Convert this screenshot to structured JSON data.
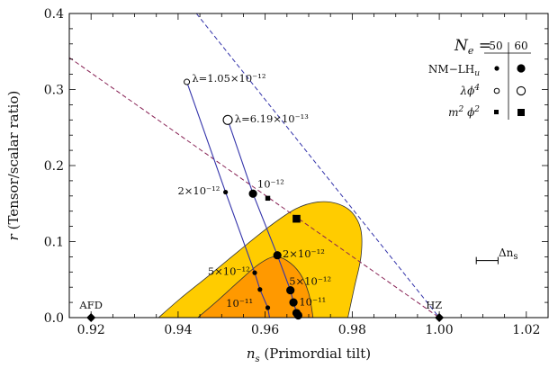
{
  "chart_data": {
    "type": "scatter",
    "x": {
      "label_symbol": "n",
      "label_subscript": "s",
      "label_rest": " (Primordial tilt)",
      "range": [
        0.915,
        1.025
      ],
      "ticks": [
        0.92,
        0.94,
        0.96,
        0.98,
        1.0,
        1.02
      ],
      "tick_labels": [
        "0.92",
        "0.94",
        "0.96",
        "0.98",
        "1.00",
        "1.02"
      ]
    },
    "y": {
      "label_symbol": "r",
      "label_rest": " (Tensor/scalar ratio)",
      "range": [
        0.0,
        0.4
      ],
      "ticks": [
        0.0,
        0.1,
        0.2,
        0.3,
        0.4
      ],
      "tick_labels": [
        "0.0",
        "0.1",
        "0.2",
        "0.3",
        "0.4"
      ]
    },
    "colors": {
      "outer_contour": "#FFCC00",
      "inner_contour": "#FF9900",
      "blue_lines": "#3333AA",
      "dashed_blue": "#3333AA",
      "dashed_purple": "#882255",
      "contour_edge": "#333333"
    },
    "confidence_regions": [
      {
        "name": "outer",
        "points": [
          [
            0.9355,
            0.0
          ],
          [
            0.9405,
            0.025
          ],
          [
            0.947,
            0.055
          ],
          [
            0.954,
            0.088
          ],
          [
            0.961,
            0.12
          ],
          [
            0.967,
            0.143
          ],
          [
            0.972,
            0.152
          ],
          [
            0.9765,
            0.15
          ],
          [
            0.98,
            0.138
          ],
          [
            0.982,
            0.115
          ],
          [
            0.982,
            0.08
          ],
          [
            0.9805,
            0.04
          ],
          [
            0.979,
            0.0
          ]
        ]
      },
      {
        "name": "inner",
        "points": [
          [
            0.9445,
            0.0
          ],
          [
            0.949,
            0.022
          ],
          [
            0.954,
            0.048
          ],
          [
            0.9585,
            0.07
          ],
          [
            0.962,
            0.08
          ],
          [
            0.965,
            0.075
          ],
          [
            0.968,
            0.058
          ],
          [
            0.97,
            0.032
          ],
          [
            0.971,
            0.0
          ]
        ]
      }
    ],
    "lambda_curves": [
      {
        "name": "large",
        "points": [
          [
            0.9514,
            0.26
          ],
          [
            0.9572,
            0.163
          ],
          [
            0.9628,
            0.082
          ],
          [
            0.9658,
            0.036
          ],
          [
            0.9665,
            0.02
          ],
          [
            0.9676,
            0.0
          ]
        ]
      },
      {
        "name": "small",
        "points": [
          [
            0.942,
            0.31
          ],
          [
            0.9509,
            0.165
          ],
          [
            0.9576,
            0.059
          ],
          [
            0.9588,
            0.037
          ],
          [
            0.9606,
            0.013
          ],
          [
            0.961,
            0.0
          ]
        ]
      }
    ],
    "dashed_lines": [
      {
        "name": "blue",
        "points": [
          [
            0.9442,
            0.4
          ],
          [
            1.0,
            0.0
          ]
        ]
      },
      {
        "name": "purple",
        "points": [
          [
            0.915,
            0.342
          ],
          [
            1.0,
            0.0
          ]
        ]
      }
    ],
    "markers": [
      {
        "x": 0.942,
        "y": 0.31,
        "kind": "open-small"
      },
      {
        "x": 0.9514,
        "y": 0.26,
        "kind": "open-large"
      },
      {
        "x": 0.9509,
        "y": 0.165,
        "kind": "dot-small"
      },
      {
        "x": 0.9572,
        "y": 0.163,
        "kind": "dot-large"
      },
      {
        "x": 0.9576,
        "y": 0.059,
        "kind": "dot-small"
      },
      {
        "x": 0.9588,
        "y": 0.037,
        "kind": "dot-small"
      },
      {
        "x": 0.9606,
        "y": 0.013,
        "kind": "dot-small"
      },
      {
        "x": 0.9628,
        "y": 0.082,
        "kind": "dot-large"
      },
      {
        "x": 0.9658,
        "y": 0.036,
        "kind": "dot-large"
      },
      {
        "x": 0.9665,
        "y": 0.02,
        "kind": "dot-large"
      },
      {
        "x": 0.9672,
        "y": 0.006,
        "kind": "dot-large"
      },
      {
        "x": 0.9676,
        "y": 0.003,
        "kind": "dot-large"
      },
      {
        "x": 0.9606,
        "y": 0.157,
        "kind": "square-small"
      },
      {
        "x": 0.9672,
        "y": 0.13,
        "kind": "square-large"
      },
      {
        "x": 0.92,
        "y": 0.0,
        "kind": "diamond"
      },
      {
        "x": 1.0,
        "y": 0.0,
        "kind": "diamond"
      }
    ],
    "annotations": [
      {
        "text": "λ=1.05×10⁻¹²",
        "x": 0.9432,
        "y": 0.31,
        "anchor": "start"
      },
      {
        "text": "λ=6.19×10⁻¹³",
        "x": 0.953,
        "y": 0.257,
        "anchor": "start"
      },
      {
        "text": "10⁻¹²",
        "x": 0.9582,
        "y": 0.171,
        "anchor": "start"
      },
      {
        "text": "2×10⁻¹²",
        "x": 0.9496,
        "y": 0.162,
        "anchor": "end"
      },
      {
        "text": "2×10⁻¹²",
        "x": 0.964,
        "y": 0.079,
        "anchor": "start"
      },
      {
        "text": "5×10⁻¹²",
        "x": 0.9565,
        "y": 0.056,
        "anchor": "end"
      },
      {
        "text": "5×10⁻¹²",
        "x": 0.9655,
        "y": 0.043,
        "anchor": "start"
      },
      {
        "text": "10⁻¹¹",
        "x": 0.9572,
        "y": 0.014,
        "anchor": "end"
      },
      {
        "text": "10⁻¹¹",
        "x": 0.9678,
        "y": 0.016,
        "anchor": "start"
      },
      {
        "text": "AFD",
        "x": 0.92,
        "y": 0.012,
        "anchor": "middle"
      },
      {
        "text": "HZ",
        "x": 0.9988,
        "y": 0.012,
        "anchor": "middle"
      }
    ],
    "delta_ns": {
      "label": "Δn",
      "label_sub": "s",
      "x_from": 1.0085,
      "x_to": 1.0135,
      "y": 0.075
    },
    "legend": {
      "title_symbol": "N",
      "title_sub": "e",
      "title_eq": " = ",
      "col_50": "50",
      "col_60": "60",
      "rows": [
        {
          "label": "NM−LH",
          "sub": "u",
          "kind": "dot"
        },
        {
          "label": "λϕ",
          "sup": "4",
          "kind": "open"
        },
        {
          "label": "m",
          "sup": "2",
          "label2": " ϕ",
          "sup2": "2",
          "kind": "square"
        }
      ]
    }
  }
}
